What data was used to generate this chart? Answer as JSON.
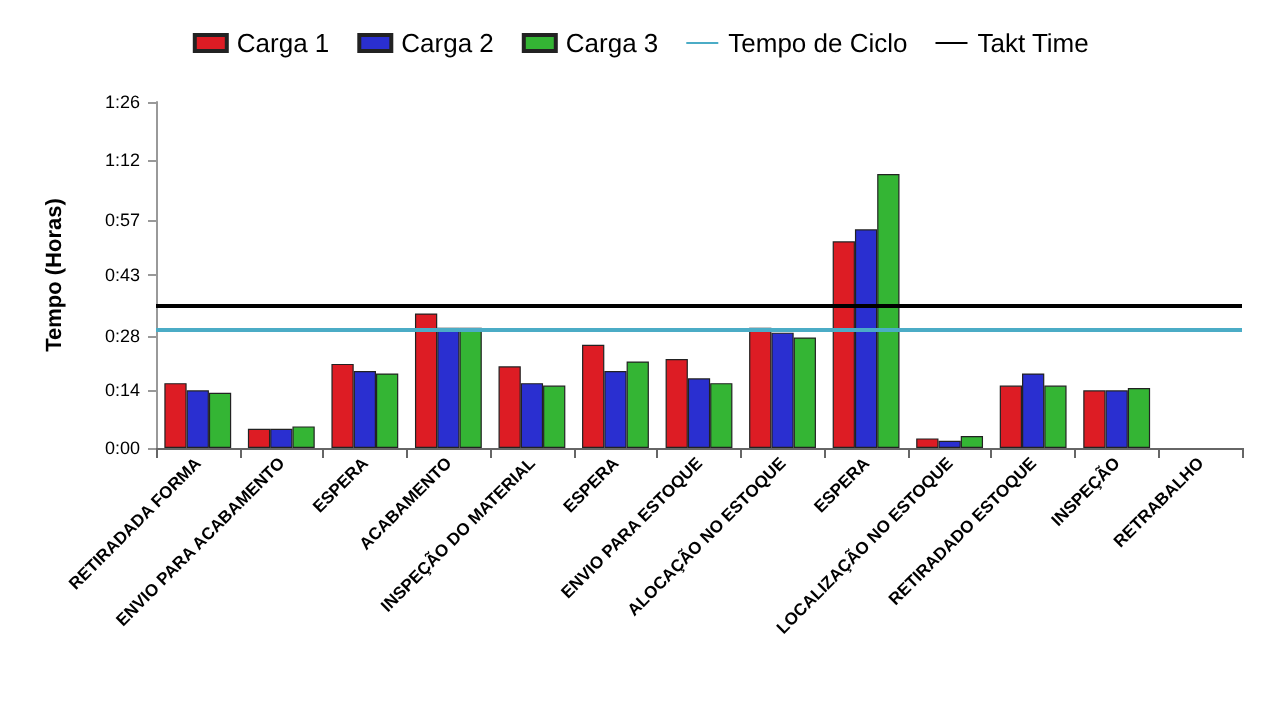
{
  "chart_data": {
    "type": "bar",
    "ylabel": "Tempo (Horas)",
    "categories": [
      "RETIRADADA FORMA",
      "ENVIO PARA ACABAMENTO",
      "ESPERA",
      "ACABAMENTO",
      "INSPEÇÃO DO MATERIAL",
      "ESPERA",
      "ENVIO PARA ESTOQUE",
      "ALOCAÇÃO NO ESTOQUE",
      "ESPERA",
      "LOCALIZAÇÃO NO ESTOQUE",
      "RETIRADADO ESTOQUE",
      "INSPEÇÃO",
      "RETRABALHO"
    ],
    "series": [
      {
        "name": "Carga 1",
        "color": "#dd1c24",
        "values": [
          0.27,
          0.08,
          0.35,
          0.56,
          0.34,
          0.43,
          0.37,
          0.5,
          0.86,
          0.04,
          0.26,
          0.24,
          null
        ]
      },
      {
        "name": "Carga 2",
        "color": "#2a2fd0",
        "values": [
          0.24,
          0.08,
          0.32,
          0.5,
          0.27,
          0.32,
          0.29,
          0.48,
          0.91,
          0.03,
          0.31,
          0.24,
          null
        ]
      },
      {
        "name": "Carga 3",
        "color": "#34b534",
        "values": [
          0.23,
          0.09,
          0.31,
          0.5,
          0.26,
          0.36,
          0.27,
          0.46,
          1.14,
          0.05,
          0.26,
          0.25,
          null
        ]
      }
    ],
    "ref_lines": [
      {
        "axis": "y",
        "value": 0.49,
        "label": "Tempo de Ciclo",
        "color": "#4bacc6"
      },
      {
        "axis": "y",
        "value": 0.59,
        "label": "Takt Time",
        "color": "#000000"
      }
    ],
    "ylim": [
      0,
      1.44
    ],
    "yticks": [
      {
        "value": 0,
        "label": "0:00"
      },
      {
        "value": 0.24,
        "label": "0:14"
      },
      {
        "value": 0.4667,
        "label": "0:28"
      },
      {
        "value": 0.72,
        "label": "0:43"
      },
      {
        "value": 0.95,
        "label": "0:57"
      },
      {
        "value": 1.2,
        "label": "1:12"
      },
      {
        "value": 1.44,
        "label": "1:26"
      }
    ],
    "legend": "top",
    "grid": false
  }
}
